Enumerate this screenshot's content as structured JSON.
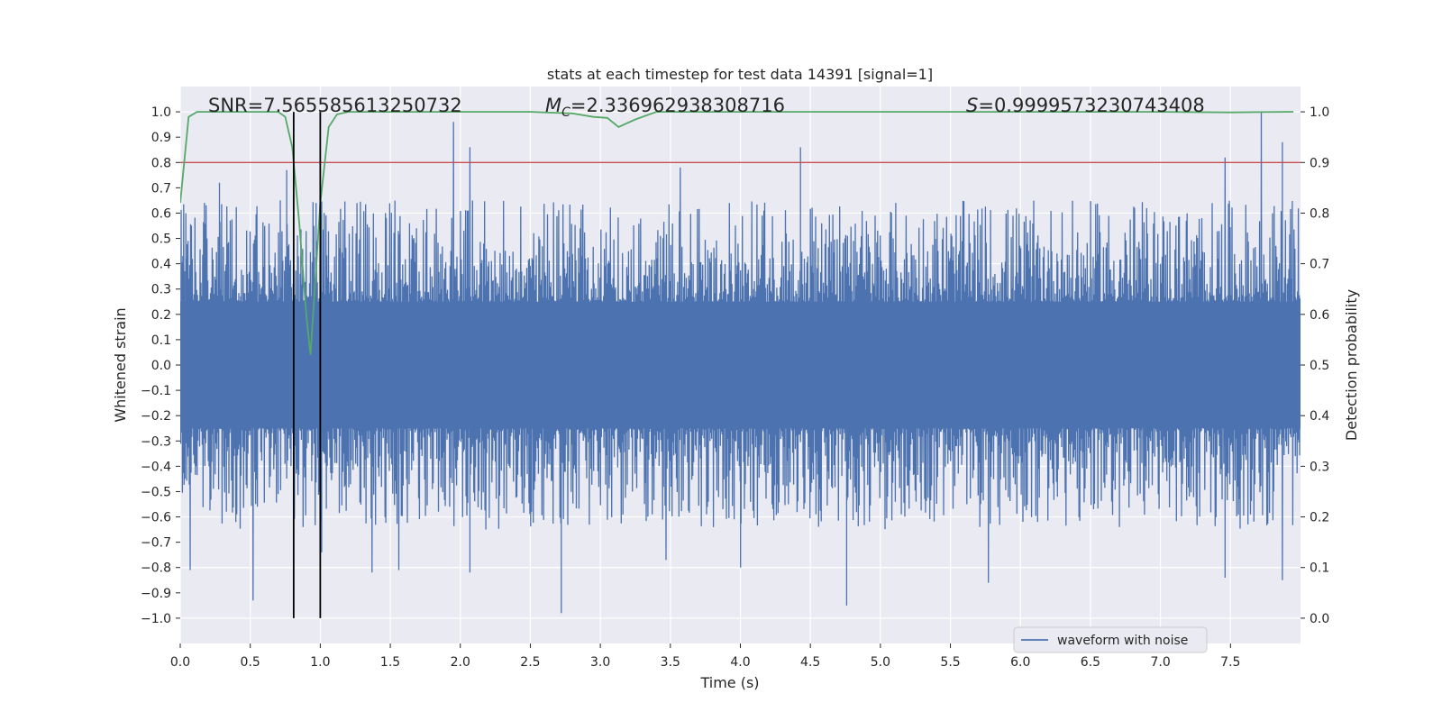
{
  "chart_data": {
    "type": "line",
    "title": "stats at each timestep for test data 14391 [signal=1]",
    "xlabel": "Time (s)",
    "ylabel": "Whitened strain",
    "ylabel_right": "Detection probability",
    "xlim": [
      0,
      8
    ],
    "ylim": [
      -1.1,
      1.1
    ],
    "ylim_right": [
      -0.05,
      1.05
    ],
    "x_ticks": [
      0.0,
      0.5,
      1.0,
      1.5,
      2.0,
      2.5,
      3.0,
      3.5,
      4.0,
      4.5,
      5.0,
      5.5,
      6.0,
      6.5,
      7.0,
      7.5
    ],
    "x_tick_labels": [
      "0.0",
      "0.5",
      "1.0",
      "1.5",
      "2.0",
      "2.5",
      "3.0",
      "3.5",
      "4.0",
      "4.5",
      "5.0",
      "5.5",
      "6.0",
      "6.5",
      "7.0",
      "7.5"
    ],
    "y_ticks": [
      1.0,
      0.9,
      0.8,
      0.7,
      0.6,
      0.5,
      0.4,
      0.3,
      0.2,
      0.1,
      0.0,
      -0.1,
      -0.2,
      -0.3,
      -0.4,
      -0.5,
      -0.6,
      -0.7,
      -0.8,
      -0.9,
      -1.0
    ],
    "y_tick_labels": [
      "1.0",
      "0.9",
      "0.8",
      "0.7",
      "0.6",
      "0.5",
      "0.4",
      "0.3",
      "0.2",
      "0.1",
      "0.0",
      "−0.1",
      "−0.2",
      "−0.3",
      "−0.4",
      "−0.5",
      "−0.6",
      "−0.7",
      "−0.8",
      "−0.9",
      "−1.0"
    ],
    "y_ticks_right": [
      1.0,
      0.9,
      0.8,
      0.7,
      0.6,
      0.5,
      0.4,
      0.3,
      0.2,
      0.1,
      0.0
    ],
    "y_tick_labels_right": [
      "1.0",
      "0.9",
      "0.8",
      "0.7",
      "0.6",
      "0.5",
      "0.4",
      "0.3",
      "0.2",
      "0.1",
      "0.0"
    ],
    "grid": true,
    "legend_position": "lower-right",
    "annotations": {
      "snr": "SNR=7.565585613250732",
      "mc_symbol": "M",
      "mc_subscript": "C",
      "mc_value": "=2.336962938308716",
      "s_symbol": "S",
      "s_value": "=0.9999573230743408"
    },
    "signal_window": [
      0.81,
      1.0
    ],
    "threshold_right": 0.9,
    "series": [
      {
        "name": "waveform with noise",
        "color": "#4c72b0",
        "sample_rate_hz": 2048,
        "duration_s": 8.0,
        "typical_envelope_pos": 0.4,
        "typical_envelope_neg": -0.4,
        "peaks": [
          {
            "x": 0.04,
            "y": 0.6
          },
          {
            "x": 0.07,
            "y": -0.81
          },
          {
            "x": 0.28,
            "y": 0.72
          },
          {
            "x": 0.52,
            "y": -0.93
          },
          {
            "x": 0.76,
            "y": 0.77
          },
          {
            "x": 0.97,
            "y": 0.64
          },
          {
            "x": 1.01,
            "y": -0.74
          },
          {
            "x": 1.37,
            "y": -0.82
          },
          {
            "x": 1.56,
            "y": -0.81
          },
          {
            "x": 1.95,
            "y": 0.96
          },
          {
            "x": 2.07,
            "y": 0.86
          },
          {
            "x": 2.07,
            "y": -0.82
          },
          {
            "x": 2.72,
            "y": -0.98
          },
          {
            "x": 3.47,
            "y": -0.77
          },
          {
            "x": 3.57,
            "y": 0.78
          },
          {
            "x": 4.0,
            "y": -0.8
          },
          {
            "x": 4.43,
            "y": 0.86
          },
          {
            "x": 4.76,
            "y": -0.95
          },
          {
            "x": 5.77,
            "y": -0.86
          },
          {
            "x": 7.46,
            "y": 0.82
          },
          {
            "x": 7.46,
            "y": -0.84
          },
          {
            "x": 7.72,
            "y": 1.0
          },
          {
            "x": 7.87,
            "y": 0.88
          },
          {
            "x": 7.87,
            "y": -0.85
          }
        ]
      },
      {
        "name": "",
        "color": "#55a868",
        "axis": "right",
        "x": [
          0.0,
          0.06,
          0.12,
          0.2,
          0.4,
          0.6,
          0.7,
          0.75,
          0.8,
          0.85,
          0.9,
          0.93,
          0.96,
          1.0,
          1.06,
          1.12,
          1.2,
          1.5,
          2.5,
          2.8,
          2.95,
          3.05,
          3.13,
          3.25,
          3.4,
          3.6,
          5.0,
          7.0,
          7.5,
          7.9,
          7.95
        ],
        "values": [
          0.82,
          0.99,
          1.0,
          1.0,
          1.0,
          1.0,
          1.0,
          0.99,
          0.93,
          0.78,
          0.6,
          0.52,
          0.65,
          0.82,
          0.97,
          0.995,
          1.0,
          1.0,
          1.0,
          0.997,
          0.99,
          0.988,
          0.97,
          0.985,
          1.0,
          1.0,
          1.0,
          1.0,
          0.999,
          1.0,
          1.0
        ]
      }
    ]
  }
}
